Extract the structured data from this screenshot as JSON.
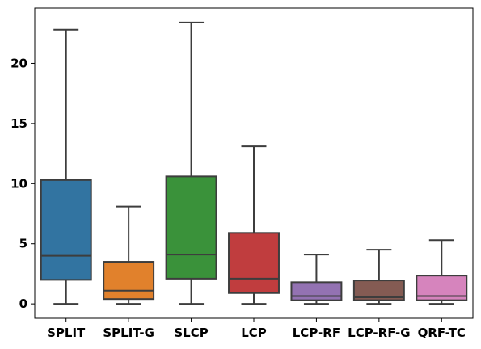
{
  "chart_data": {
    "type": "box",
    "categories": [
      "SPLIT",
      "SPLIT-G",
      "SLCP",
      "LCP",
      "LCP-RF",
      "LCP-RF-G",
      "QRF-TC"
    ],
    "boxes": [
      {
        "category": "SPLIT",
        "whislo": 0,
        "q1": 2.0,
        "med": 4.0,
        "q3": 10.3,
        "whishi": 22.8
      },
      {
        "category": "SPLIT-G",
        "whislo": 0,
        "q1": 0.4,
        "med": 1.1,
        "q3": 3.5,
        "whishi": 8.1
      },
      {
        "category": "SLCP",
        "whislo": 0,
        "q1": 2.1,
        "med": 4.1,
        "q3": 10.6,
        "whishi": 23.4
      },
      {
        "category": "LCP",
        "whislo": 0,
        "q1": 0.9,
        "med": 2.1,
        "q3": 5.9,
        "whishi": 13.1
      },
      {
        "category": "LCP-RF",
        "whislo": 0,
        "q1": 0.3,
        "med": 0.65,
        "q3": 1.8,
        "whishi": 4.1
      },
      {
        "category": "LCP-RF-G",
        "whislo": 0,
        "q1": 0.3,
        "med": 0.55,
        "q3": 1.95,
        "whishi": 4.5
      },
      {
        "category": "QRF-TC",
        "whislo": 0,
        "q1": 0.3,
        "med": 0.65,
        "q3": 2.35,
        "whishi": 5.3
      }
    ],
    "colors": [
      "#3274a1",
      "#e1812c",
      "#3a923a",
      "#c03d3e",
      "#9372b2",
      "#845b53",
      "#d684bd"
    ],
    "line_color": "#3d3d3d",
    "yticks": [
      0,
      5,
      10,
      15,
      20
    ],
    "ylim": [
      -1.2,
      24.6
    ],
    "grid": false,
    "title": "",
    "xlabel": "",
    "ylabel": ""
  }
}
